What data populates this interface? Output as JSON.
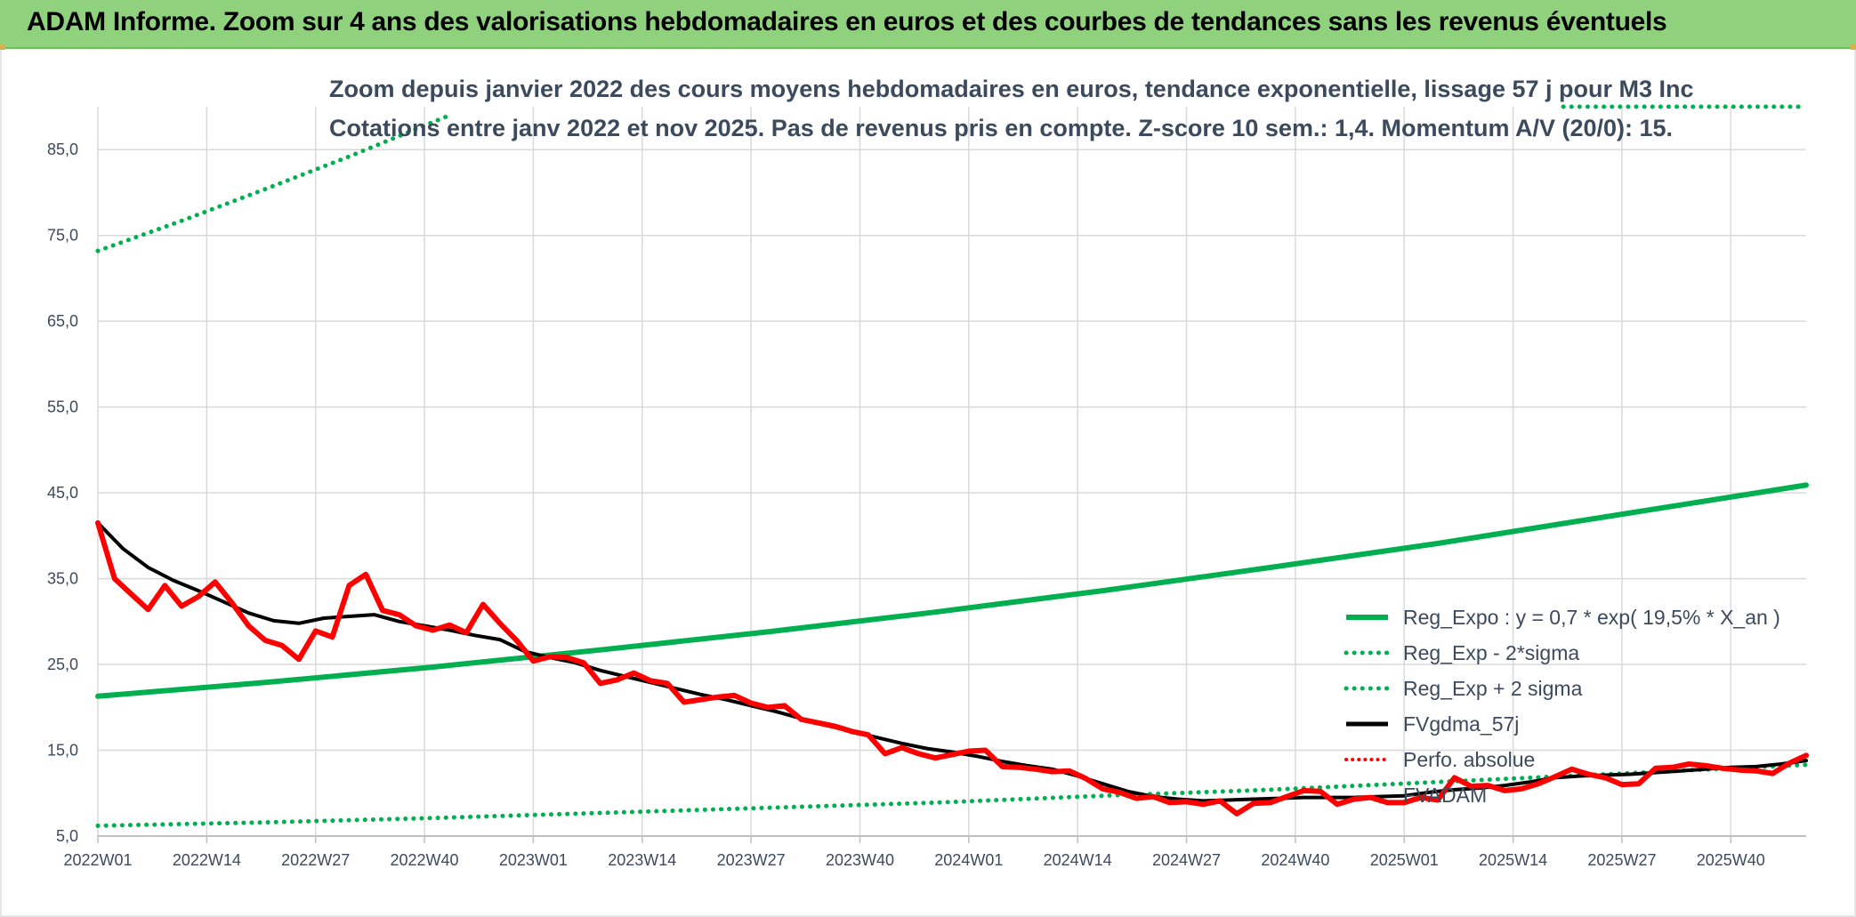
{
  "header": {
    "banner": "ADAM Informe. Zoom sur 4 ans des valorisations hebdomadaires en euros et des courbes de tendances sans les revenus éventuels"
  },
  "chart_data": {
    "type": "line",
    "title_line1": "Zoom depuis janvier 2022 des cours moyens hebdomadaires en euros, tendance exponentielle, lissage 57 j pour M3 Inc",
    "title_line2": "Cotations entre janv 2022 et nov 2025. Pas de revenus pris en compte. Z-score 10 sem.: 1,4. Momentum A/V (20/0): 15.",
    "ylim": [
      5,
      90
    ],
    "yticks": [
      "5,0",
      "15,0",
      "25,0",
      "35,0",
      "45,0",
      "55,0",
      "65,0",
      "75,0",
      "85,0"
    ],
    "ytick_values": [
      5,
      15,
      25,
      35,
      45,
      55,
      65,
      75,
      85
    ],
    "xlim": [
      0,
      204
    ],
    "xticks": [
      "2022W01",
      "2022W14",
      "2022W27",
      "2022W40",
      "2023W01",
      "2023W14",
      "2023W27",
      "2023W40",
      "2024W01",
      "2024W14",
      "2024W27",
      "2024W40",
      "2025W01",
      "2025W14",
      "2025W27",
      "2025W40"
    ],
    "xtick_positions": [
      0,
      13,
      26,
      39,
      52,
      65,
      78,
      91,
      104,
      117,
      130,
      143,
      156,
      169,
      182,
      195
    ],
    "legend": [
      "Reg_Expo : y = 0,7 * exp( 19,5% *  X_an )",
      "Reg_Exp - 2*sigma",
      "Reg_Exp + 2 sigma",
      "FVgdma_57j",
      "Perfo. absolue",
      "FVADAM"
    ],
    "series": [
      {
        "name": "Reg_Expo",
        "style": "solid",
        "color": "#00b050",
        "x": [
          0,
          20,
          40,
          60,
          80,
          100,
          120,
          140,
          160,
          180,
          204
        ],
        "values": [
          21.3,
          22.9,
          24.7,
          26.7,
          28.8,
          31.1,
          33.6,
          36.3,
          39.1,
          42.2,
          45.9
        ]
      },
      {
        "name": "Reg_Exp - 2*sigma",
        "style": "dotted",
        "color": "#00b050",
        "x": [
          0,
          20,
          40,
          60,
          80,
          100,
          120,
          140,
          160,
          180,
          204
        ],
        "values": [
          6.2,
          6.6,
          7.1,
          7.7,
          8.3,
          8.9,
          9.7,
          10.4,
          11.3,
          12.2,
          13.3
        ]
      },
      {
        "name": "Reg_Exp + 2 sigma",
        "style": "dotted",
        "color": "#00b050",
        "x": [
          0,
          10,
          20,
          30,
          42
        ],
        "values": [
          73.2,
          76.7,
          80.4,
          84.2,
          89.0
        ],
        "x2": [
          175,
          204
        ],
        "values2": [
          90,
          90
        ]
      },
      {
        "name": "FVgdma_57j",
        "style": "solid",
        "color": "#000000",
        "x": [
          0,
          3,
          6,
          9,
          12,
          15,
          18,
          21,
          24,
          27,
          30,
          33,
          36,
          39,
          42,
          45,
          48,
          51,
          54,
          57,
          60,
          63,
          66,
          69,
          72,
          75,
          78,
          81,
          84,
          87,
          90,
          93,
          96,
          99,
          102,
          105,
          108,
          111,
          114,
          117,
          120,
          123,
          126,
          129,
          132,
          135,
          138,
          141,
          144,
          147,
          150,
          153,
          156,
          159,
          162,
          165,
          168,
          171,
          174,
          177,
          180,
          183,
          186,
          189,
          192,
          195,
          198,
          201,
          204
        ],
        "values": [
          41.5,
          38.5,
          36.3,
          34.8,
          33.6,
          32.3,
          31.0,
          30.1,
          29.8,
          30.4,
          30.6,
          30.8,
          30.0,
          29.5,
          29.0,
          28.4,
          27.9,
          26.5,
          25.8,
          25.2,
          24.3,
          23.6,
          22.9,
          22.2,
          21.5,
          20.9,
          20.2,
          19.5,
          18.7,
          17.9,
          17.2,
          16.5,
          15.8,
          15.2,
          14.8,
          14.3,
          13.7,
          13.2,
          12.8,
          12.0,
          11.1,
          10.2,
          9.6,
          9.3,
          9.1,
          9.2,
          9.3,
          9.4,
          9.5,
          9.5,
          9.5,
          9.6,
          9.7,
          10.1,
          10.4,
          10.6,
          10.9,
          11.3,
          11.8,
          12.0,
          12.1,
          12.2,
          12.4,
          12.6,
          12.8,
          13.0,
          13.1,
          13.4,
          13.8
        ]
      },
      {
        "name": "Perfo. absolue",
        "style": "solid",
        "color": "#ff0000",
        "x": [
          0,
          2,
          4,
          6,
          8,
          10,
          12,
          14,
          16,
          18,
          20,
          22,
          24,
          26,
          28,
          30,
          32,
          34,
          36,
          38,
          40,
          42,
          44,
          46,
          48,
          50,
          52,
          54,
          56,
          58,
          60,
          62,
          64,
          66,
          68,
          70,
          72,
          74,
          76,
          78,
          80,
          82,
          84,
          86,
          88,
          90,
          92,
          94,
          96,
          98,
          100,
          102,
          104,
          106,
          108,
          110,
          112,
          114,
          116,
          118,
          120,
          122,
          124,
          126,
          128,
          130,
          132,
          134,
          136,
          138,
          140,
          142,
          144,
          146,
          148,
          150,
          152,
          154,
          156,
          158,
          160,
          162,
          164,
          166,
          168,
          170,
          172,
          174,
          176,
          178,
          180,
          182,
          184,
          186,
          188,
          190,
          192,
          194,
          196,
          198,
          200,
          202,
          204
        ],
        "values": [
          41.5,
          35.0,
          33.2,
          31.4,
          34.2,
          31.8,
          32.9,
          34.6,
          32.2,
          29.5,
          27.8,
          27.2,
          25.6,
          28.9,
          28.2,
          34.2,
          35.5,
          31.3,
          30.8,
          29.5,
          29.0,
          29.6,
          28.7,
          32.0,
          29.8,
          27.8,
          25.4,
          25.9,
          25.8,
          25.2,
          22.8,
          23.2,
          24.0,
          23.1,
          22.8,
          20.6,
          20.9,
          21.2,
          21.4,
          20.5,
          20.0,
          20.2,
          18.6,
          18.2,
          17.8,
          17.2,
          16.8,
          14.6,
          15.3,
          14.6,
          14.1,
          14.5,
          14.9,
          15.0,
          13.1,
          13.0,
          12.8,
          12.5,
          12.6,
          11.7,
          10.5,
          10.1,
          9.4,
          9.6,
          8.9,
          9.0,
          8.7,
          9.1,
          7.6,
          8.8,
          8.9,
          9.6,
          10.3,
          10.2,
          8.7,
          9.3,
          9.5,
          8.9,
          8.9,
          9.5,
          9.2,
          11.8,
          10.8,
          10.9,
          10.3,
          10.5,
          11.1,
          11.9,
          12.8,
          12.2,
          11.8,
          11.0,
          11.1,
          12.9,
          13.0,
          13.4,
          13.2,
          12.9,
          12.7,
          12.6,
          12.3,
          13.5,
          14.4
        ]
      },
      {
        "name": "FVADAM",
        "style": "solid",
        "color": "#00b050",
        "x": [],
        "values": []
      }
    ]
  }
}
